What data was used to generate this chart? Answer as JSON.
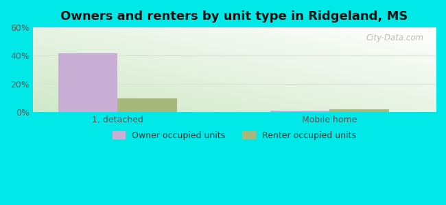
{
  "title": "Owners and renters by unit type in Ridgeland, MS",
  "categories": [
    "1, detached",
    "Mobile home"
  ],
  "owner_values": [
    41.5,
    1.2
  ],
  "renter_values": [
    10.0,
    2.0
  ],
  "owner_color": "#c9aed6",
  "renter_color": "#a8b87a",
  "owner_label": "Owner occupied units",
  "renter_label": "Renter occupied units",
  "ylim": [
    0,
    60
  ],
  "yticks": [
    0,
    20,
    40,
    60
  ],
  "yticklabels": [
    "0%",
    "20%",
    "40%",
    "60%"
  ],
  "background_outer": "#00e8e8",
  "watermark": "City-Data.com",
  "bar_width": 0.28,
  "x_positions": [
    0.35,
    1.35
  ],
  "xlim": [
    -0.05,
    1.85
  ]
}
